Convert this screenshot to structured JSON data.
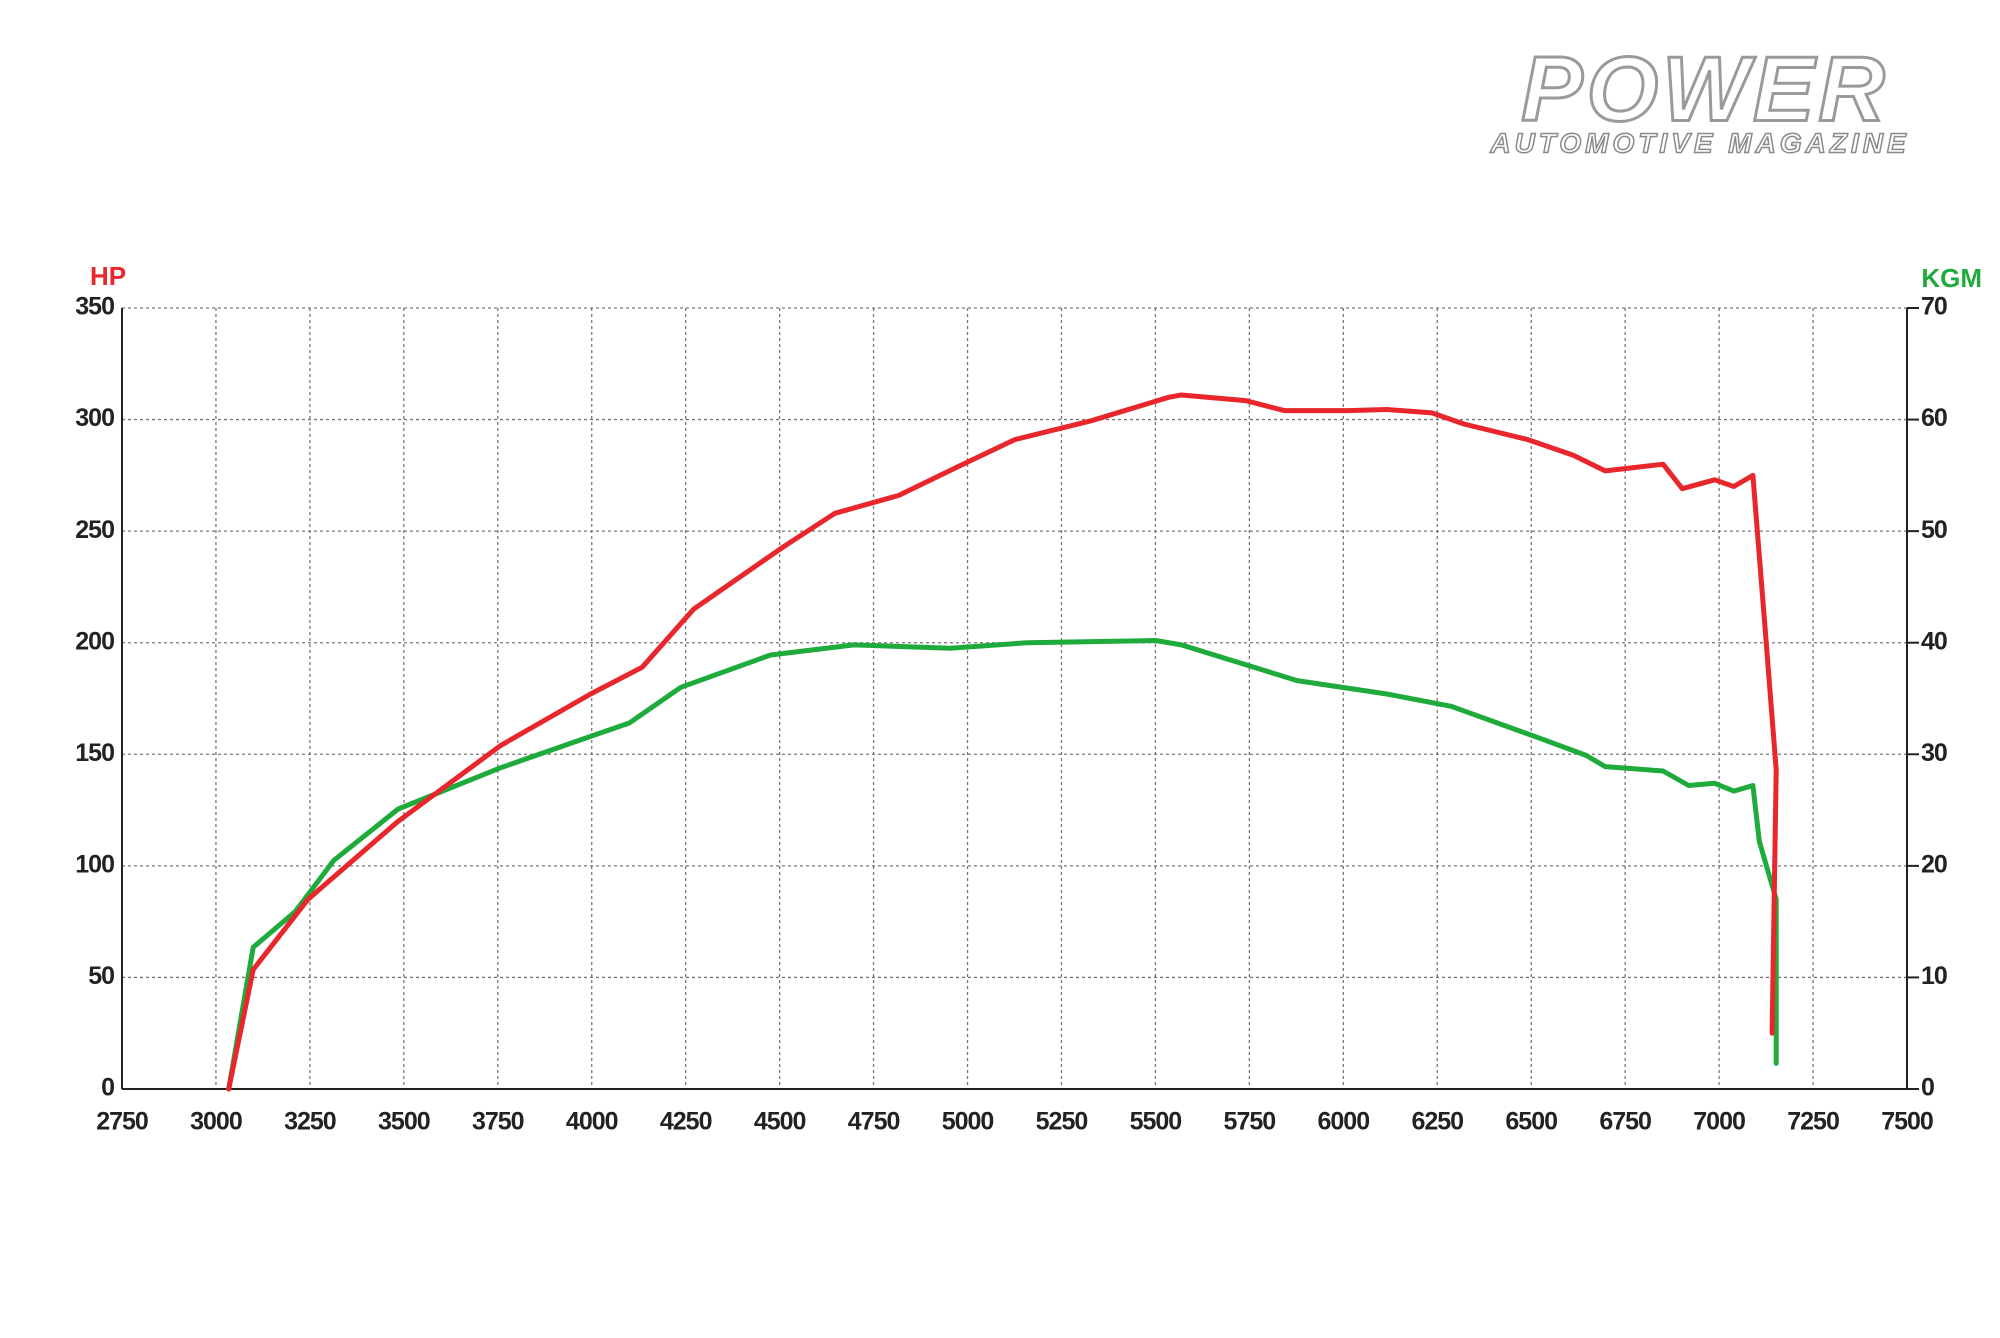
{
  "brand": "POWER",
  "brand_subtitle": "AUTOMOTIVE MAGAZINE",
  "chart_data": {
    "type": "line",
    "ylabel": "HP",
    "y2label": "KGM",
    "xlim": [
      2750,
      7500
    ],
    "xticks": [
      2750,
      3000,
      3250,
      3500,
      3750,
      4000,
      4250,
      4500,
      4750,
      5000,
      5250,
      5500,
      5750,
      6000,
      6250,
      6500,
      6750,
      7000,
      7250,
      7500
    ],
    "ylim": [
      0,
      350
    ],
    "yticks": [
      0,
      50,
      100,
      150,
      200,
      250,
      300,
      350
    ],
    "y2lim": [
      0,
      70
    ],
    "y2ticks": [
      0,
      10,
      20,
      30,
      40,
      50,
      60,
      70
    ],
    "grid": true,
    "series": [
      {
        "name": "HP",
        "color": "#e8262b",
        "x": [
          3034,
          3099,
          3245,
          3485,
          3758,
          3997,
          4134,
          4271,
          4510,
          4647,
          4817,
          4988,
          5125,
          5330,
          5535,
          5569,
          5740,
          5843,
          6013,
          6116,
          6236,
          6321,
          6492,
          6612,
          6697,
          6851,
          6902,
          6988,
          7039,
          7090,
          7124,
          7152,
          7141
        ],
        "values": [
          0,
          53.5,
          85,
          120,
          154,
          177,
          189,
          215,
          243,
          258,
          266,
          280,
          291,
          299.5,
          310,
          311,
          308.5,
          304,
          304,
          304.5,
          303,
          298,
          291,
          284,
          277,
          280,
          269,
          273,
          270,
          275,
          203,
          143,
          25
        ]
      },
      {
        "name": "KGM",
        "color": "#1faa3c",
        "axis": "y2",
        "x": [
          3034,
          3099,
          3211,
          3314,
          3485,
          3758,
          3997,
          4100,
          4237,
          4476,
          4698,
          4954,
          5159,
          5501,
          5569,
          5877,
          6116,
          6287,
          6526,
          6646,
          6697,
          6851,
          6919,
          6988,
          7039,
          7090,
          7107,
          7152,
          7152
        ],
        "values": [
          0,
          12.7,
          15.9,
          20.5,
          25.1,
          28.8,
          31.6,
          32.8,
          36,
          38.9,
          39.8,
          39.5,
          40,
          40.2,
          39.8,
          36.6,
          35.4,
          34.3,
          31.4,
          29.9,
          28.9,
          28.5,
          27.2,
          27.4,
          26.7,
          27.2,
          22.2,
          17,
          2.3
        ]
      }
    ]
  }
}
